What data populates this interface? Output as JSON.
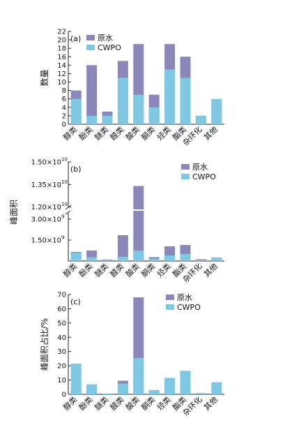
{
  "colors": {
    "raw_water": "#8b87b8",
    "cwpo": "#7ec8e3",
    "axis": "#222222"
  },
  "chart_data": [
    {
      "type": "bar",
      "panel_label": "(a)",
      "ylabel": "数量",
      "categories": [
        "醇类",
        "酚类",
        "醚类",
        "醛类",
        "酸类",
        "酮类",
        "烃类",
        "酯类",
        "杂环化",
        "其他"
      ],
      "series": [
        {
          "name": "原水",
          "values": [
            8,
            14,
            3,
            15,
            19,
            7,
            19,
            16,
            2,
            5
          ]
        },
        {
          "name": "CWPO",
          "values": [
            6,
            2,
            2,
            11,
            7,
            4,
            13,
            11,
            2,
            6
          ]
        }
      ],
      "ylim": [
        0,
        22
      ],
      "yticks": [
        "0",
        "2",
        "4",
        "6",
        "8",
        "10",
        "12",
        "14",
        "16",
        "18",
        "20",
        "22"
      ],
      "ytick_values": [
        0,
        2,
        4,
        6,
        8,
        10,
        12,
        14,
        16,
        18,
        20,
        22
      ],
      "legend": "top-left"
    },
    {
      "type": "bar",
      "panel_label": "(b)",
      "ylabel": "峰面积",
      "categories": [
        "醇类",
        "酚类",
        "醚类",
        "醛类",
        "酸类",
        "酮类",
        "烃类",
        "酯类",
        "杂环化",
        "其他"
      ],
      "series": [
        {
          "name": "原水",
          "values": [
            650000000.0,
            750000000.0,
            100000000.0,
            1850000000.0,
            13400000000.0,
            280000000.0,
            1050000000.0,
            1150000000.0,
            120000000.0,
            220000000.0
          ]
        },
        {
          "name": "CWPO",
          "values": [
            600000000.0,
            280000000.0,
            60000000.0,
            300000000.0,
            750000000.0,
            180000000.0,
            400000000.0,
            500000000.0,
            50000000.0,
            260000000.0
          ]
        }
      ],
      "broken_axis": true,
      "ylim_lower": [
        0,
        3600000000.0
      ],
      "ylim_upper": [
        11800000000.0,
        15000000000.0
      ],
      "yticks": [
        "1.50×10",
        "1.35×10",
        "1.20×10",
        "3.00×10",
        "1.50×10"
      ],
      "ytick_exponents": [
        "10",
        "10",
        "10",
        "9",
        "9"
      ],
      "ytick_values": [
        15000000000.0,
        13500000000.0,
        12000000000.0,
        3000000000.0,
        1500000000.0
      ],
      "legend": "top-right"
    },
    {
      "type": "bar",
      "panel_label": "(c)",
      "ylabel": "峰面积占比/%",
      "categories": [
        "醇类",
        "酚类",
        "醚类",
        "醛类",
        "酸类",
        "酮类",
        "烃类",
        "酯类",
        "杂环化",
        "其他"
      ],
      "series": [
        {
          "name": "原水",
          "values": [
            3.5,
            4,
            0.5,
            9.5,
            68,
            2,
            6,
            6,
            0.5,
            0.5
          ]
        },
        {
          "name": "CWPO",
          "values": [
            21.5,
            7,
            0.5,
            7.5,
            25.5,
            3,
            11.5,
            16.5,
            1,
            8.5
          ]
        }
      ],
      "ylim": [
        0,
        70
      ],
      "yticks": [
        "0",
        "10",
        "20",
        "30",
        "40",
        "50",
        "60",
        "70"
      ],
      "ytick_values": [
        0,
        10,
        20,
        30,
        40,
        50,
        60,
        70
      ],
      "legend": "top-right"
    }
  ]
}
